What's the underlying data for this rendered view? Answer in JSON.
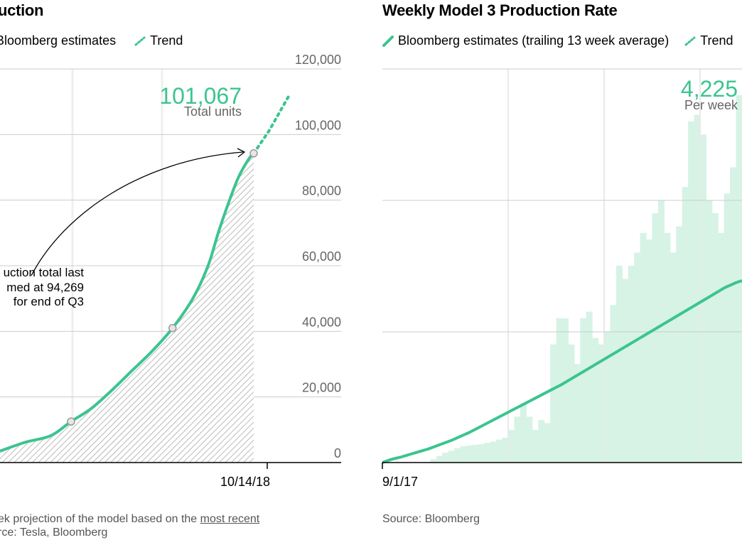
{
  "colors": {
    "accent": "#3cc48f",
    "bars": "#d6f3e6",
    "grid": "#cccccc",
    "hatch": "#9a9a9a"
  },
  "left": {
    "title": "uction",
    "legend": {
      "series": "Bloomberg estimates",
      "trend": "Trend"
    },
    "annotation": {
      "value": "101,067",
      "unit": "Total units",
      "callout": [
        "uction total last",
        "med at 94,269",
        "for end of Q3"
      ]
    },
    "footer": {
      "line1_prefix": "ek projection of the model based on the ",
      "line1_link": "most recent",
      "line2": "rce: Tesla, Bloomberg"
    }
  },
  "right": {
    "title": "Weekly Model 3 Production Rate",
    "legend": {
      "series": "Bloomberg estimates (trailing 13 week average)",
      "trend": "Trend"
    },
    "annotation": {
      "value": "4,225",
      "unit": "Per week"
    },
    "footer": {
      "source": "Source: Bloomberg"
    }
  },
  "chart_data": [
    {
      "type": "line",
      "title": "uction",
      "legend": [
        "Bloomberg estimates",
        "Trend"
      ],
      "y_ticks": [
        "120,000",
        "100,000",
        "80,000",
        "60,000",
        "40,000",
        "20,000",
        "0"
      ],
      "ylim": [
        0,
        120000
      ],
      "x_ticks": [
        "10/14/18"
      ],
      "series": [
        {
          "name": "Bloomberg estimates",
          "points": [
            [
              0,
              3500
            ],
            [
              5,
              6200
            ],
            [
              10,
              8200
            ],
            [
              14,
              12500
            ],
            [
              18,
              16500
            ],
            [
              22,
              22000
            ],
            [
              26,
              28000
            ],
            [
              30,
              34000
            ],
            [
              34,
              41000
            ],
            [
              38,
              50000
            ],
            [
              41,
              60000
            ],
            [
              43,
              70000
            ],
            [
              45,
              79000
            ],
            [
              47,
              87000
            ],
            [
              49,
              92500
            ],
            [
              50,
              94269
            ]
          ]
        },
        {
          "name": "Trend",
          "points": [
            [
              50,
              94269
            ],
            [
              53,
              101067
            ],
            [
              57,
              112000
            ]
          ]
        }
      ],
      "markers": [
        [
          14,
          12500
        ],
        [
          34,
          41000
        ],
        [
          50,
          94269
        ]
      ]
    },
    {
      "type": "bar",
      "title": "Weekly Model 3 Production Rate",
      "legend": [
        "Bloomberg estimates (trailing 13 week average)",
        "Trend"
      ],
      "x_ticks": [
        "9/1/17"
      ],
      "bars": [
        0.2,
        0.3,
        0.5,
        0.7,
        0.9,
        1.0,
        1.2,
        1.5,
        1.7,
        2.0,
        2.3,
        2.5,
        2.6,
        2.7,
        2.8,
        2.9,
        3.0,
        3.1,
        3.2,
        3.3,
        3.5,
        3.8,
        4.2,
        4.8,
        5.5,
        6.0,
        6.5,
        7.2,
        8.0,
        9.0,
        10.0,
        10.5,
        11.0,
        11.8,
        12.5,
        13.2,
        14.0,
        14.8,
        15.5,
        16.5,
        17.5,
        18.5,
        19.5,
        20.5,
        21.5,
        22.5,
        23.5,
        24.5,
        25.5,
        26.5,
        27.5,
        28.5,
        29.5,
        30.5,
        31.5,
        32.5,
        34.0,
        36.0,
        38.0,
        40.0,
        42.0,
        44.0,
        46.0,
        48.0,
        50.0,
        52.0,
        54.0,
        56.0,
        58.0,
        60.0
      ],
      "line": [
        0.0,
        0.05,
        0.09,
        0.12,
        0.16,
        0.2,
        0.24,
        0.28,
        0.32,
        0.37,
        0.42,
        0.47,
        0.52,
        0.58,
        0.64,
        0.7,
        0.77,
        0.84,
        0.91,
        0.98,
        1.05,
        1.12,
        1.19,
        1.26,
        1.33,
        1.4,
        1.47,
        1.54,
        1.61,
        1.68,
        1.75,
        1.82,
        1.9,
        1.98,
        2.06,
        2.14,
        2.22,
        2.3,
        2.38,
        2.46,
        2.54,
        2.62,
        2.7,
        2.78,
        2.86,
        2.94,
        3.02,
        3.1,
        3.18,
        3.26,
        3.34,
        3.42,
        3.5,
        3.58,
        3.66,
        3.74,
        3.82,
        3.9,
        3.98,
        4.06,
        4.12,
        4.18,
        4.225
      ]
    }
  ]
}
